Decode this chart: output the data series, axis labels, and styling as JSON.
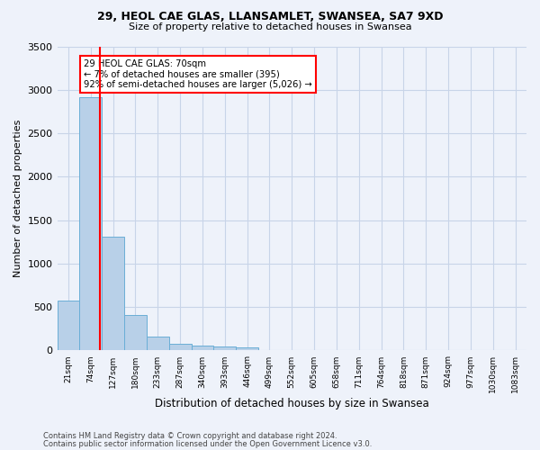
{
  "title1": "29, HEOL CAE GLAS, LLANSAMLET, SWANSEA, SA7 9XD",
  "title2": "Size of property relative to detached houses in Swansea",
  "xlabel": "Distribution of detached houses by size in Swansea",
  "ylabel": "Number of detached properties",
  "footer1": "Contains HM Land Registry data © Crown copyright and database right 2024.",
  "footer2": "Contains public sector information licensed under the Open Government Licence v3.0.",
  "annotation_line1": "29 HEOL CAE GLAS: 70sqm",
  "annotation_line2": "← 7% of detached houses are smaller (395)",
  "annotation_line3": "92% of semi-detached houses are larger (5,026) →",
  "bar_color": "#b8d0e8",
  "bar_edge_color": "#6aaed6",
  "marker_color": "red",
  "ylim": [
    0,
    3500
  ],
  "yticks": [
    0,
    500,
    1000,
    1500,
    2000,
    2500,
    3000,
    3500
  ],
  "bin_labels": [
    "21sqm",
    "74sqm",
    "127sqm",
    "180sqm",
    "233sqm",
    "287sqm",
    "340sqm",
    "393sqm",
    "446sqm",
    "499sqm",
    "552sqm",
    "605sqm",
    "658sqm",
    "711sqm",
    "764sqm",
    "818sqm",
    "871sqm",
    "924sqm",
    "977sqm",
    "1030sqm",
    "1083sqm"
  ],
  "values": [
    570,
    2920,
    1310,
    410,
    155,
    80,
    55,
    45,
    40,
    0,
    0,
    0,
    0,
    0,
    0,
    0,
    0,
    0,
    0,
    0,
    0
  ],
  "marker_bar_index": 1,
  "background_color": "#eef2fa",
  "grid_color": "#c8d4e8"
}
